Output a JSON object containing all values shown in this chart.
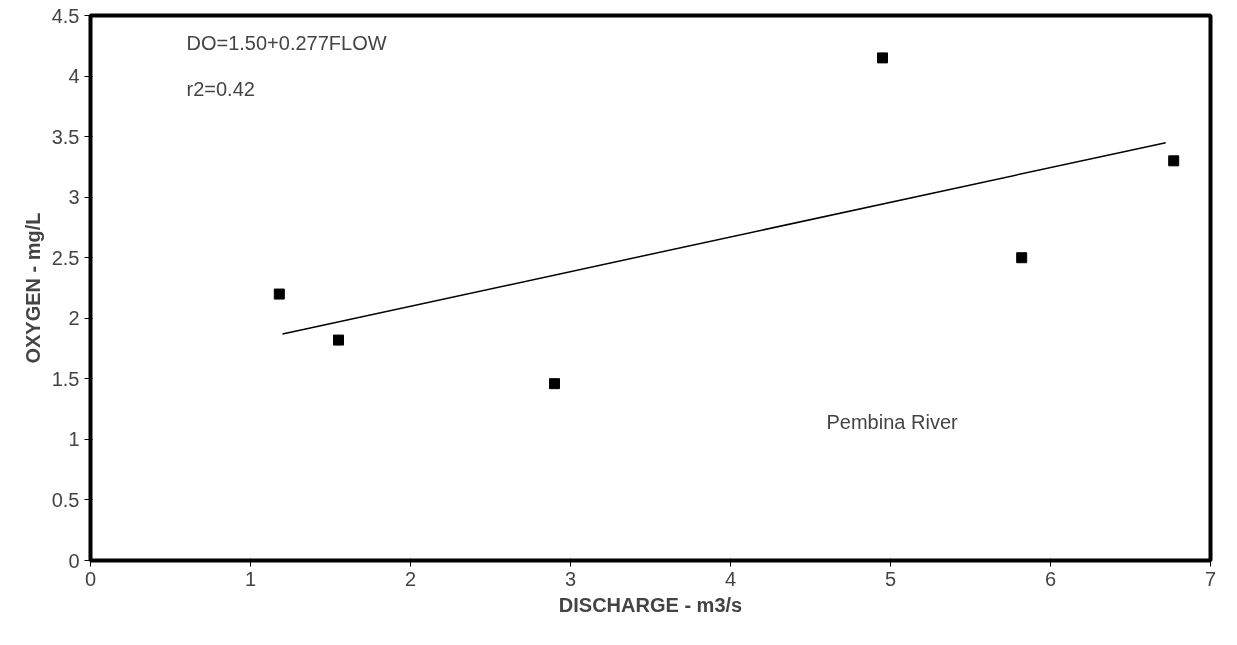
{
  "chart_data": {
    "type": "scatter",
    "xlabel": "DISCHARGE - m3/s",
    "ylabel": "OXYGEN - mg/L",
    "grid": false,
    "xlim": [
      0,
      7
    ],
    "xticks": [
      0,
      1,
      2,
      3,
      4,
      5,
      6,
      7
    ],
    "ylim": [
      0,
      4.5
    ],
    "yticks": [
      0,
      0.5,
      1,
      1.5,
      2,
      2.5,
      3,
      3.5,
      4,
      4.5
    ],
    "series": [
      {
        "color": "#000000",
        "marker": "square",
        "x": [
          1.18,
          1.55,
          2.9,
          4.95,
          5.82,
          6.77
        ],
        "values": [
          2.2,
          1.82,
          1.46,
          4.15,
          2.5,
          3.3
        ]
      },
      {
        "type": "line",
        "color": "#000000",
        "x": [
          1.2,
          6.72
        ],
        "values": [
          1.87,
          3.45
        ]
      }
    ],
    "annotations": [
      "DO=1.50+0.277FLOW",
      "r2=0.42",
      "Pembina River"
    ]
  }
}
